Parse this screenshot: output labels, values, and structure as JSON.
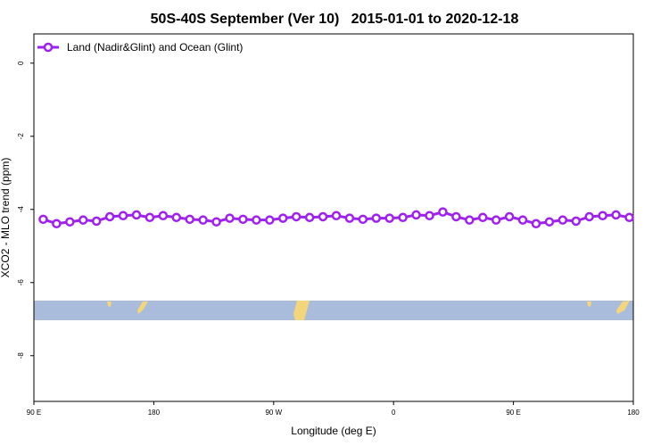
{
  "chart_data": {
    "type": "line",
    "title": "50S-40S September (Ver 10)   2015-01-01 to 2020-12-18",
    "x_label": "Longitude (deg E)",
    "y_label": "XCO2 - MLO trend (ppm)",
    "x": [
      97,
      107,
      117,
      127,
      137,
      147,
      157,
      167,
      177,
      187,
      197,
      207,
      217,
      227,
      237,
      247,
      257,
      267,
      277,
      287,
      297,
      307,
      317,
      327,
      337,
      347,
      357,
      367,
      377,
      387,
      397,
      407,
      417,
      427,
      437,
      447,
      457,
      467,
      477,
      487,
      497,
      507,
      517,
      527,
      537
    ],
    "series": [
      {
        "name": "Land (Nadir&Glint) and Ocean (Glint)",
        "color": "#a020f0",
        "values": [
          -4.27,
          -4.39,
          -4.34,
          -4.29,
          -4.32,
          -4.2,
          -4.17,
          -4.15,
          -4.22,
          -4.17,
          -4.22,
          -4.27,
          -4.29,
          -4.34,
          -4.24,
          -4.27,
          -4.29,
          -4.29,
          -4.24,
          -4.2,
          -4.22,
          -4.2,
          -4.17,
          -4.24,
          -4.27,
          -4.24,
          -4.24,
          -4.22,
          -4.15,
          -4.17,
          -4.07,
          -4.2,
          -4.29,
          -4.22,
          -4.29,
          -4.2,
          -4.29,
          -4.39,
          -4.34,
          -4.29,
          -4.32,
          -4.2,
          -4.17,
          -4.15,
          -4.22
        ]
      }
    ],
    "xlim": [
      90,
      540
    ],
    "xticks": [
      {
        "value": 90,
        "label": "90 E"
      },
      180,
      {
        "value": 270,
        "label": "90 W"
      },
      {
        "value": 360,
        "label": "0"
      },
      {
        "value": 450,
        "label": "90 E"
      },
      {
        "value": 540,
        "label": "180"
      }
    ],
    "ylim": [
      -9.25,
      0.8
    ],
    "yticks": [
      0,
      -2,
      -4,
      -6,
      -8
    ],
    "legend": "topleft"
  }
}
